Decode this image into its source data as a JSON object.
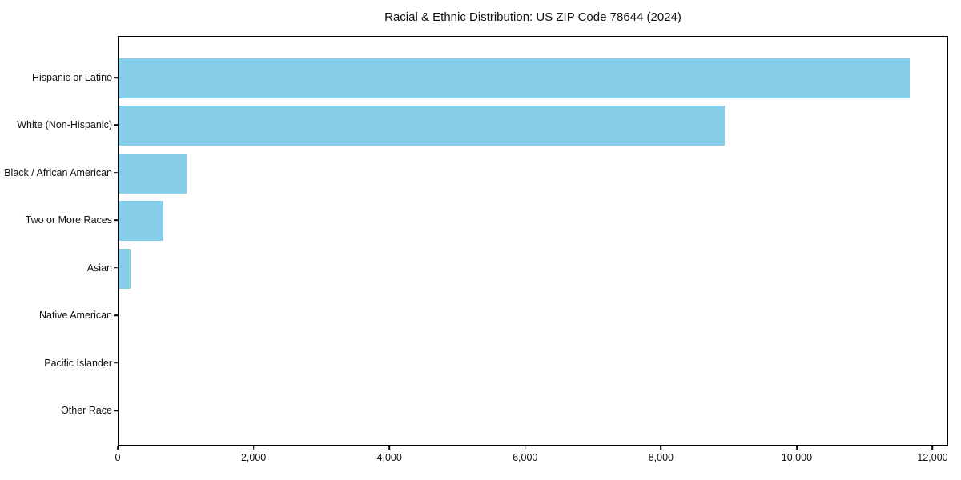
{
  "figure": {
    "background_color": "#ffffff",
    "text_color": "#111111",
    "spine_color": "#000000"
  },
  "chart_data": {
    "type": "bar",
    "orientation": "horizontal",
    "title": "Racial & Ethnic Distribution: US ZIP Code 78644 (2024)",
    "categories": [
      "Hispanic or Latino",
      "White (Non-Hispanic)",
      "Black / African American",
      "Two or More Races",
      "Asian",
      "Native American",
      "Pacific Islander",
      "Other Race"
    ],
    "values": [
      11650,
      8930,
      1000,
      660,
      180,
      0,
      0,
      0
    ],
    "bar_color": "#87CEEB",
    "xlabel": "",
    "ylabel": "",
    "xlim": [
      0,
      12230
    ],
    "x_ticks": [
      0,
      2000,
      4000,
      6000,
      8000,
      10000,
      12000
    ],
    "x_tick_labels": [
      "0",
      "2,000",
      "4,000",
      "6,000",
      "8,000",
      "10,000",
      "12,000"
    ],
    "grid": false,
    "legend": null
  }
}
